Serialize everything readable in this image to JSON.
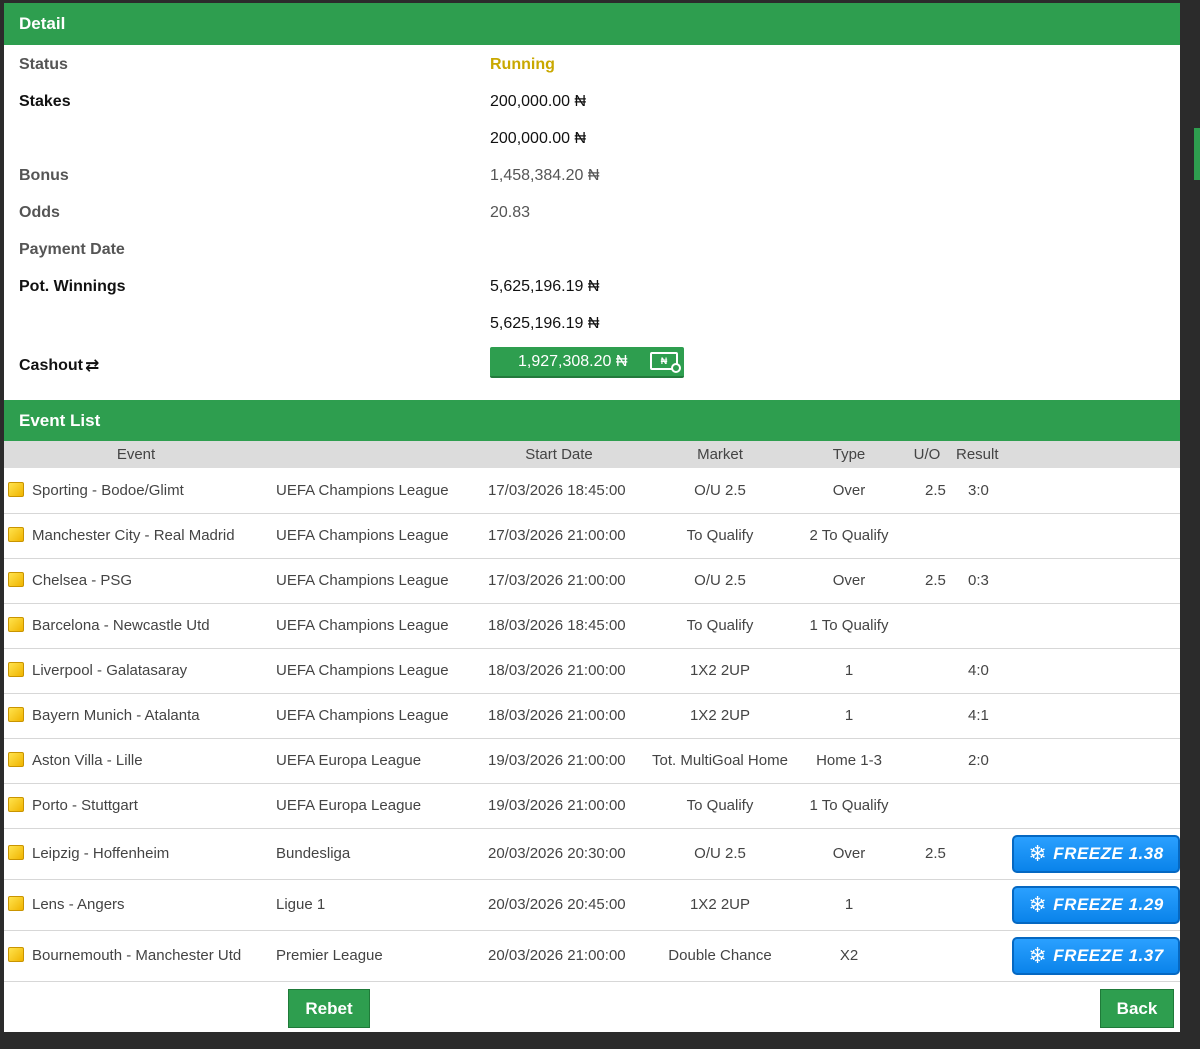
{
  "detail": {
    "header": "Detail",
    "status_label": "Status",
    "status_value": "Running",
    "stakes_label": "Stakes",
    "stakes_value_1": "200,000.00 ₦",
    "stakes_value_2": "200,000.00 ₦",
    "bonus_label": "Bonus",
    "bonus_value": "1,458,384.20 ₦",
    "odds_label": "Odds",
    "odds_value": "20.83",
    "payment_date_label": "Payment Date",
    "pot_winnings_label": "Pot. Winnings",
    "pot_winnings_value_1": "5,625,196.19 ₦",
    "pot_winnings_value_2": "5,625,196.19 ₦",
    "cashout_label": "Cashout",
    "cashout_value": "1,927,308.20 ₦",
    "cashout_note_glyph": "₦"
  },
  "events": {
    "header": "Event List",
    "columns": [
      "Event",
      "Start Date",
      "Market",
      "Type",
      "U/O",
      "Result"
    ],
    "rows": [
      {
        "event": "Sporting - Bodoe/Glimt",
        "league": "UEFA Champions League",
        "date": "17/03/2026 18:45:00",
        "market": "O/U 2.5",
        "type": "Over",
        "uo": "2.5",
        "result": "3:0",
        "freeze": ""
      },
      {
        "event": "Manchester City - Real Madrid",
        "league": "UEFA Champions League",
        "date": "17/03/2026 21:00:00",
        "market": "To Qualify",
        "type": "2 To Qualify",
        "uo": "",
        "result": "",
        "freeze": ""
      },
      {
        "event": "Chelsea - PSG",
        "league": "UEFA Champions League",
        "date": "17/03/2026 21:00:00",
        "market": "O/U 2.5",
        "type": "Over",
        "uo": "2.5",
        "result": "0:3",
        "freeze": ""
      },
      {
        "event": "Barcelona - Newcastle Utd",
        "league": "UEFA Champions League",
        "date": "18/03/2026 18:45:00",
        "market": "To Qualify",
        "type": "1 To Qualify",
        "uo": "",
        "result": "",
        "freeze": ""
      },
      {
        "event": "Liverpool - Galatasaray",
        "league": "UEFA Champions League",
        "date": "18/03/2026 21:00:00",
        "market": "1X2 2UP",
        "type": "1",
        "uo": "",
        "result": "4:0",
        "freeze": ""
      },
      {
        "event": "Bayern Munich - Atalanta",
        "league": "UEFA Champions League",
        "date": "18/03/2026 21:00:00",
        "market": "1X2 2UP",
        "type": "1",
        "uo": "",
        "result": "4:1",
        "freeze": ""
      },
      {
        "event": "Aston Villa - Lille",
        "league": "UEFA Europa League",
        "date": "19/03/2026 21:00:00",
        "market": "Tot. MultiGoal Home",
        "type": "Home 1-3",
        "uo": "",
        "result": "2:0",
        "freeze": ""
      },
      {
        "event": "Porto - Stuttgart",
        "league": "UEFA Europa League",
        "date": "19/03/2026 21:00:00",
        "market": "To Qualify",
        "type": "1 To Qualify",
        "uo": "",
        "result": "",
        "freeze": ""
      },
      {
        "event": "Leipzig - Hoffenheim",
        "league": "Bundesliga",
        "date": "20/03/2026 20:30:00",
        "market": "O/U 2.5",
        "type": "Over",
        "uo": "2.5",
        "result": "",
        "freeze": "FREEZE 1.38"
      },
      {
        "event": "Lens - Angers",
        "league": "Ligue 1",
        "date": "20/03/2026 20:45:00",
        "market": "1X2 2UP",
        "type": "1",
        "uo": "",
        "result": "",
        "freeze": "FREEZE 1.29"
      },
      {
        "event": "Bournemouth - Manchester Utd",
        "league": "Premier League",
        "date": "20/03/2026 21:00:00",
        "market": "Double Chance",
        "type": "X2",
        "uo": "",
        "result": "",
        "freeze": "FREEZE 1.37"
      }
    ]
  },
  "actions": {
    "rebet_label": "Rebet",
    "back_label": "Back"
  },
  "colors": {
    "accent_green": "#2e9e4f",
    "status_running": "#c9a800",
    "freeze_blue": "#0a83ea"
  },
  "icons": {
    "cashout": "refresh-icon",
    "event": "star-icon",
    "freeze": "snowflake-icon"
  }
}
